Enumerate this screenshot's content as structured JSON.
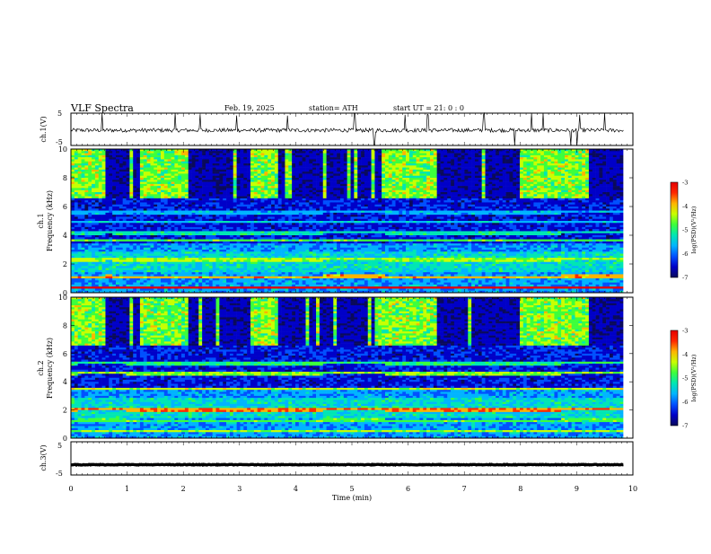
{
  "header": {
    "title": "VLF  Spectra",
    "date": "Feb. 19, 2025",
    "station": "station= ATH",
    "start": "start  UT  =    21: 0  : 0"
  },
  "colors": {
    "colormap": [
      "#000000",
      "#0a0a5a",
      "#0000c8",
      "#0050ff",
      "#00b4ff",
      "#00e6b4",
      "#3cff3c",
      "#c8ff00",
      "#ffb400",
      "#ff2800",
      "#e60000",
      "#ffc8c8",
      "#ffffff"
    ],
    "trace": "#000000"
  },
  "chart_data": [
    {
      "type": "line",
      "name": "ch1-waveform",
      "ylabel": "ch.1(V)",
      "ylim": [
        -5,
        5
      ],
      "yticks": [
        "5",
        "-5"
      ],
      "xlim": [
        0,
        10
      ],
      "level": -0.3,
      "noise_amplitude": 0.6,
      "spikes_up": [
        0.55,
        1.85,
        2.3,
        2.95,
        3.85,
        5.05,
        5.95,
        6.35,
        7.35,
        8.2,
        8.4,
        9.05,
        9.5
      ],
      "spikes_down": [
        5.4,
        7.9,
        8.9,
        9.0
      ]
    },
    {
      "type": "heatmap",
      "name": "ch1-spectrogram",
      "ylabel": "Frequency  (kHz)",
      "ylabel2": "ch.1",
      "ylim": [
        0,
        10
      ],
      "yticks": [
        "0",
        "2",
        "4",
        "6",
        "8",
        "10"
      ],
      "xlim": [
        0,
        9.83
      ],
      "colorbar": {
        "label": "log(PSD)(V²/Hz)",
        "range": [
          -7,
          -3
        ],
        "ticks": [
          "-3",
          "-4",
          "-5",
          "-6",
          "-7"
        ]
      },
      "bursts": [
        [
          0.0,
          0.6
        ],
        [
          1.2,
          2.1
        ],
        [
          3.2,
          3.7
        ],
        [
          5.5,
          6.5
        ],
        [
          8.0,
          9.2
        ]
      ],
      "lines": [
        {
          "f": 0.35,
          "level": -3.0
        },
        {
          "f": 1.1,
          "level": -4.0
        },
        {
          "f": 2.3,
          "level": -4.5
        },
        {
          "f": 3.6,
          "level": -4.8
        },
        {
          "f": 4.15,
          "level": -5.2
        },
        {
          "f": 4.9,
          "level": -5.5
        },
        {
          "f": 5.6,
          "level": -5.6
        }
      ],
      "band_shifts": [
        [
          0.6,
          0.75
        ],
        [
          4.5,
          5.6
        ],
        [
          8.7,
          9.83
        ]
      ]
    },
    {
      "type": "heatmap",
      "name": "ch2-spectrogram",
      "ylabel": "Frequency  (kHz)",
      "ylabel2": "ch.2",
      "ylim": [
        0,
        10
      ],
      "yticks": [
        "0",
        "2",
        "4",
        "6",
        "8",
        "10"
      ],
      "xlim": [
        0,
        9.83
      ],
      "colorbar": {
        "label": "log(PSD)(V²/Hz)",
        "range": [
          -7,
          -3
        ],
        "ticks": [
          "-3",
          "-4",
          "-5",
          "-6",
          "-7"
        ]
      },
      "bursts": [
        [
          0.0,
          0.6
        ],
        [
          1.2,
          2.1
        ],
        [
          3.2,
          3.7
        ],
        [
          5.5,
          6.5
        ],
        [
          8.0,
          9.2
        ]
      ],
      "lines": [
        {
          "f": 0.5,
          "level": -4.5
        },
        {
          "f": 1.25,
          "level": -4.8
        },
        {
          "f": 2.0,
          "level": -3.8
        },
        {
          "f": 3.5,
          "level": -4.4
        },
        {
          "f": 4.6,
          "level": -4.6
        },
        {
          "f": 5.3,
          "level": -5.0
        }
      ],
      "band_shifts": [
        [
          0.1,
          1.0
        ],
        [
          4.5,
          5.6
        ],
        [
          8.7,
          9.83
        ]
      ]
    },
    {
      "type": "line",
      "name": "ch3-waveform",
      "ylabel": "ch.3(V)",
      "ylim": [
        -5,
        5
      ],
      "yticks": [
        "5",
        "-5"
      ],
      "xlim": [
        0,
        10
      ],
      "level": -1.9,
      "noise_amplitude": 0.1
    }
  ],
  "xaxis": {
    "label": "Time  (min)",
    "ticks": [
      "0",
      "1",
      "2",
      "3",
      "4",
      "5",
      "6",
      "7",
      "8",
      "9",
      "10"
    ]
  }
}
